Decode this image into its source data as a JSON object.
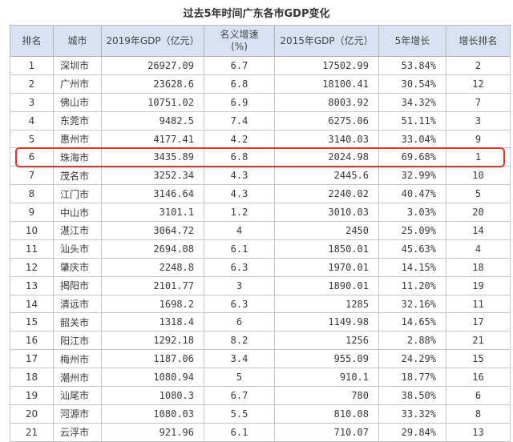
{
  "title": "过去5年时间广东各市GDP变化",
  "headers": {
    "rank": "排名",
    "city": "城市",
    "gdp2019": "2019年GDP（亿元）",
    "growth": "名义增速",
    "growth_unit": "(%)",
    "gdp2015": "2015年GDP（亿元）",
    "increase5y": "5年增长",
    "increase_rank": "增长排名"
  },
  "rows": [
    {
      "rank": "1",
      "city": "深圳市",
      "gdp2019": "26927.09",
      "growth": "6.7",
      "gdp2015": "17502.99",
      "increase5y": "53.84%",
      "increase_rank": "2"
    },
    {
      "rank": "2",
      "city": "广州市",
      "gdp2019": "23628.6",
      "growth": "6.8",
      "gdp2015": "18100.41",
      "increase5y": "30.54%",
      "increase_rank": "12"
    },
    {
      "rank": "3",
      "city": "佛山市",
      "gdp2019": "10751.02",
      "growth": "6.9",
      "gdp2015": "8003.92",
      "increase5y": "34.32%",
      "increase_rank": "7"
    },
    {
      "rank": "4",
      "city": "东莞市",
      "gdp2019": "9482.5",
      "growth": "7.4",
      "gdp2015": "6275.06",
      "increase5y": "51.11%",
      "increase_rank": "3"
    },
    {
      "rank": "5",
      "city": "惠州市",
      "gdp2019": "4177.41",
      "growth": "4.2",
      "gdp2015": "3140.03",
      "increase5y": "33.04%",
      "increase_rank": "9"
    },
    {
      "rank": "6",
      "city": "珠海市",
      "gdp2019": "3435.89",
      "growth": "6.8",
      "gdp2015": "2024.98",
      "increase5y": "69.68%",
      "increase_rank": "1"
    },
    {
      "rank": "7",
      "city": "茂名市",
      "gdp2019": "3252.34",
      "growth": "4.3",
      "gdp2015": "2445.6",
      "increase5y": "32.99%",
      "increase_rank": "10"
    },
    {
      "rank": "8",
      "city": "江门市",
      "gdp2019": "3146.64",
      "growth": "4.3",
      "gdp2015": "2240.02",
      "increase5y": "40.47%",
      "increase_rank": "5"
    },
    {
      "rank": "9",
      "city": "中山市",
      "gdp2019": "3101.1",
      "growth": "1.2",
      "gdp2015": "3010.03",
      "increase5y": "3.03%",
      "increase_rank": "20"
    },
    {
      "rank": "10",
      "city": "湛江市",
      "gdp2019": "3064.72",
      "growth": "4",
      "gdp2015": "2450",
      "increase5y": "25.09%",
      "increase_rank": "14"
    },
    {
      "rank": "11",
      "city": "汕头市",
      "gdp2019": "2694.08",
      "growth": "6.1",
      "gdp2015": "1850.01",
      "increase5y": "45.63%",
      "increase_rank": "4"
    },
    {
      "rank": "12",
      "city": "肇庆市",
      "gdp2019": "2248.8",
      "growth": "6.3",
      "gdp2015": "1970.01",
      "increase5y": "14.15%",
      "increase_rank": "18"
    },
    {
      "rank": "13",
      "city": "揭阳市",
      "gdp2019": "2101.77",
      "growth": "3",
      "gdp2015": "1890.01",
      "increase5y": "11.20%",
      "increase_rank": "19"
    },
    {
      "rank": "14",
      "city": "清远市",
      "gdp2019": "1698.2",
      "growth": "6.3",
      "gdp2015": "1285",
      "increase5y": "32.16%",
      "increase_rank": "11"
    },
    {
      "rank": "15",
      "city": "韶关市",
      "gdp2019": "1318.4",
      "growth": "6",
      "gdp2015": "1149.98",
      "increase5y": "14.65%",
      "increase_rank": "17"
    },
    {
      "rank": "16",
      "city": "阳江市",
      "gdp2019": "1292.18",
      "growth": "8.2",
      "gdp2015": "1256",
      "increase5y": "2.88%",
      "increase_rank": "21"
    },
    {
      "rank": "17",
      "city": "梅州市",
      "gdp2019": "1187.06",
      "growth": "3.4",
      "gdp2015": "955.09",
      "increase5y": "24.29%",
      "increase_rank": "15"
    },
    {
      "rank": "18",
      "city": "潮州市",
      "gdp2019": "1080.94",
      "growth": "5",
      "gdp2015": "910.1",
      "increase5y": "18.77%",
      "increase_rank": "16"
    },
    {
      "rank": "19",
      "city": "汕尾市",
      "gdp2019": "1080.3",
      "growth": "6.7",
      "gdp2015": "780",
      "increase5y": "38.50%",
      "increase_rank": "6"
    },
    {
      "rank": "20",
      "city": "河源市",
      "gdp2019": "1080.03",
      "growth": "5.5",
      "gdp2015": "810.08",
      "increase5y": "33.32%",
      "increase_rank": "8"
    },
    {
      "rank": "21",
      "city": "云浮市",
      "gdp2019": "921.96",
      "growth": "6.1",
      "gdp2015": "710.07",
      "increase5y": "29.84%",
      "increase_rank": "13"
    }
  ],
  "highlight_row_rank": "6",
  "colors": {
    "header_bg": "#d9e2f3",
    "highlight_border": "#e0312a"
  }
}
